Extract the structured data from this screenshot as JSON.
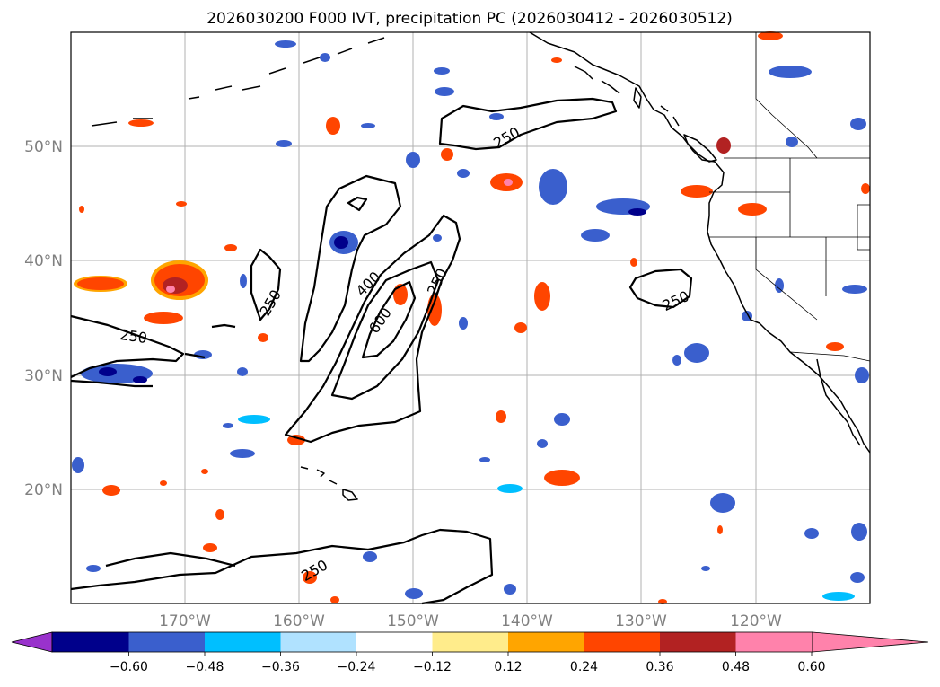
{
  "title": "2026030200 F000 IVT, precipitation PC (2026030412 - 2026030512)",
  "map": {
    "lat_labels": [
      "50°N",
      "40°N",
      "30°N",
      "20°N"
    ],
    "lon_labels": [
      "170°W",
      "160°W",
      "150°W",
      "140°W",
      "130°W",
      "120°W"
    ],
    "ivt_contour_labels": [
      "250",
      "250",
      "250",
      "250",
      "250",
      "400",
      "600",
      "250"
    ]
  },
  "colorbar": {
    "colors": [
      "#9932cc",
      "#00008b",
      "#3a5fcd",
      "#00bfff",
      "#b0e2ff",
      "#ffffff",
      "#ffec8b",
      "#ffa500",
      "#ff4500",
      "#b22222",
      "#ff82ab"
    ],
    "ticks": [
      "−0.60",
      "−0.48",
      "−0.36",
      "−0.24",
      "−0.12",
      "0.12",
      "0.24",
      "0.36",
      "0.48",
      "0.60"
    ]
  },
  "chart_data": {
    "type": "map",
    "title": "2026030200 F000 IVT, precipitation PC (2026030412 - 2026030512)",
    "region": "Northeast Pacific and western North America",
    "lat_range": [
      10,
      60
    ],
    "lon_range": [
      -180,
      -110
    ],
    "contour_levels": [
      250,
      400,
      600
    ],
    "shading_bounds": [
      -0.6,
      -0.48,
      -0.36,
      -0.24,
      -0.12,
      0.12,
      0.24,
      0.36,
      0.48,
      0.6
    ],
    "colorbar_extend": "both"
  }
}
